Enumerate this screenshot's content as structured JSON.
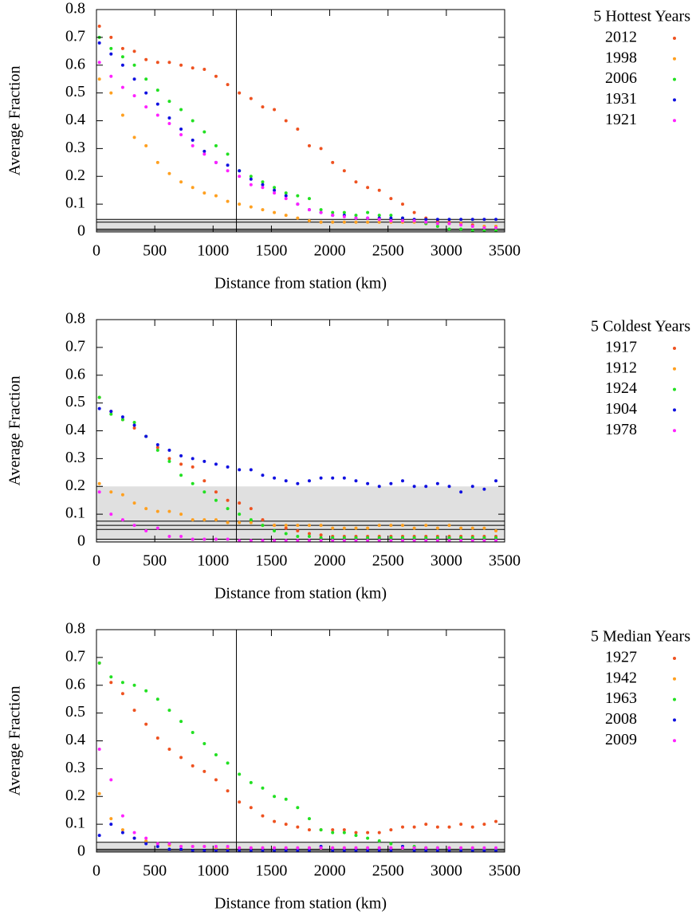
{
  "chart_data": [
    {
      "type": "scatter",
      "legend_title": "5 Hottest Years",
      "xlabel": "Distance from station (km)",
      "ylabel": "Average Fraction",
      "xlim": [
        0,
        3500
      ],
      "ylim": [
        0,
        0.8
      ],
      "xticks": [
        0,
        500,
        1000,
        1500,
        2000,
        2500,
        3000,
        3500
      ],
      "yticks": [
        0,
        0.1,
        0.2,
        0.3,
        0.4,
        0.5,
        0.6,
        0.7,
        0.8
      ],
      "vline": 1200,
      "band": [
        0.005,
        0.045
      ],
      "hlines": [
        0.045,
        0.035,
        0.01,
        0.005
      ],
      "x": [
        25,
        125,
        225,
        325,
        425,
        525,
        625,
        725,
        825,
        925,
        1025,
        1125,
        1225,
        1325,
        1425,
        1525,
        1625,
        1725,
        1825,
        1925,
        2025,
        2125,
        2225,
        2325,
        2425,
        2525,
        2625,
        2725,
        2825,
        2925,
        3025,
        3125,
        3225,
        3325,
        3425
      ],
      "series": [
        {
          "name": "2012",
          "color": "#ee5220",
          "values": [
            0.74,
            0.7,
            0.66,
            0.65,
            0.62,
            0.61,
            0.61,
            0.6,
            0.59,
            0.585,
            0.56,
            0.53,
            0.5,
            0.48,
            0.45,
            0.44,
            0.4,
            0.37,
            0.31,
            0.3,
            0.25,
            0.22,
            0.18,
            0.16,
            0.15,
            0.12,
            0.1,
            0.07,
            0.05,
            0.04,
            0.035,
            0.03,
            0.025,
            0.02,
            0.02
          ]
        },
        {
          "name": "1998",
          "color": "#ffa020",
          "values": [
            0.55,
            0.5,
            0.42,
            0.34,
            0.31,
            0.25,
            0.21,
            0.18,
            0.16,
            0.14,
            0.13,
            0.11,
            0.1,
            0.09,
            0.08,
            0.07,
            0.06,
            0.05,
            0.04,
            0.035,
            0.035,
            0.035,
            0.035,
            0.035,
            0.035,
            0.035,
            0.035,
            0.035,
            0.03,
            0.03,
            0.03,
            0.03,
            0.02,
            0.02,
            0.02
          ]
        },
        {
          "name": "2006",
          "color": "#22e022",
          "values": [
            0.7,
            0.66,
            0.63,
            0.6,
            0.55,
            0.51,
            0.47,
            0.44,
            0.4,
            0.36,
            0.31,
            0.28,
            0.22,
            0.2,
            0.18,
            0.16,
            0.14,
            0.13,
            0.12,
            0.08,
            0.07,
            0.07,
            0.06,
            0.07,
            0.06,
            0.06,
            0.05,
            0.04,
            0.03,
            0.02,
            0.01,
            0.01,
            0.005,
            0.005,
            0.005
          ]
        },
        {
          "name": "1931",
          "color": "#1010e0",
          "values": [
            0.68,
            0.64,
            0.6,
            0.55,
            0.5,
            0.46,
            0.41,
            0.37,
            0.33,
            0.29,
            0.25,
            0.24,
            0.22,
            0.19,
            0.17,
            0.15,
            0.13,
            0.1,
            0.08,
            0.07,
            0.06,
            0.06,
            0.05,
            0.05,
            0.05,
            0.05,
            0.05,
            0.045,
            0.045,
            0.045,
            0.045,
            0.045,
            0.045,
            0.045,
            0.045
          ]
        },
        {
          "name": "1921",
          "color": "#ff22ff",
          "values": [
            0.61,
            0.56,
            0.52,
            0.49,
            0.45,
            0.42,
            0.39,
            0.35,
            0.31,
            0.28,
            0.25,
            0.22,
            0.2,
            0.17,
            0.16,
            0.14,
            0.12,
            0.1,
            0.08,
            0.07,
            0.06,
            0.055,
            0.05,
            0.05,
            0.045,
            0.04,
            0.04,
            0.04,
            0.035,
            0.03,
            0.03,
            0.025,
            0.02,
            0.015,
            0.015
          ]
        }
      ]
    },
    {
      "type": "scatter",
      "legend_title": "5 Coldest Years",
      "xlabel": "Distance from station (km)",
      "ylabel": "Average Fraction",
      "xlim": [
        0,
        3500
      ],
      "ylim": [
        0,
        0.8
      ],
      "xticks": [
        0,
        500,
        1000,
        1500,
        2000,
        2500,
        3000,
        3500
      ],
      "yticks": [
        0,
        0.1,
        0.2,
        0.3,
        0.4,
        0.5,
        0.6,
        0.7,
        0.8
      ],
      "vline": 1200,
      "band": [
        0,
        0.2
      ],
      "hlines": [
        0.075,
        0.06,
        0.045,
        0.01
      ],
      "x": [
        25,
        125,
        225,
        325,
        425,
        525,
        625,
        725,
        825,
        925,
        1025,
        1125,
        1225,
        1325,
        1425,
        1525,
        1625,
        1725,
        1825,
        1925,
        2025,
        2125,
        2225,
        2325,
        2425,
        2525,
        2625,
        2725,
        2825,
        2925,
        3025,
        3125,
        3225,
        3325,
        3425
      ],
      "series": [
        {
          "name": "1917",
          "color": "#ee5220",
          "values": [
            0.52,
            0.47,
            0.44,
            0.41,
            0.38,
            0.34,
            0.3,
            0.28,
            0.27,
            0.22,
            0.18,
            0.15,
            0.14,
            0.12,
            0.08,
            0.06,
            0.05,
            0.04,
            0.03,
            0.025,
            0.02,
            0.02,
            0.02,
            0.02,
            0.02,
            0.02,
            0.02,
            0.02,
            0.02,
            0.02,
            0.02,
            0.02,
            0.02,
            0.02,
            0.02
          ]
        },
        {
          "name": "1912",
          "color": "#ffa020",
          "values": [
            0.21,
            0.18,
            0.17,
            0.14,
            0.12,
            0.11,
            0.11,
            0.1,
            0.08,
            0.08,
            0.08,
            0.07,
            0.07,
            0.07,
            0.06,
            0.06,
            0.06,
            0.06,
            0.06,
            0.06,
            0.05,
            0.05,
            0.05,
            0.05,
            0.06,
            0.06,
            0.06,
            0.05,
            0.06,
            0.05,
            0.06,
            0.05,
            0.05,
            0.05,
            0.04
          ]
        },
        {
          "name": "1924",
          "color": "#22e022",
          "values": [
            0.52,
            0.46,
            0.44,
            0.43,
            0.38,
            0.33,
            0.29,
            0.24,
            0.21,
            0.18,
            0.15,
            0.12,
            0.1,
            0.08,
            0.06,
            0.04,
            0.03,
            0.02,
            0.02,
            0.015,
            0.015,
            0.015,
            0.015,
            0.015,
            0.015,
            0.015,
            0.015,
            0.015,
            0.015,
            0.015,
            0.015,
            0.015,
            0.015,
            0.015,
            0.015
          ]
        },
        {
          "name": "1904",
          "color": "#1010e0",
          "values": [
            0.48,
            0.47,
            0.45,
            0.42,
            0.38,
            0.35,
            0.33,
            0.31,
            0.3,
            0.29,
            0.28,
            0.27,
            0.26,
            0.26,
            0.24,
            0.23,
            0.22,
            0.21,
            0.22,
            0.23,
            0.23,
            0.23,
            0.22,
            0.21,
            0.2,
            0.21,
            0.22,
            0.2,
            0.2,
            0.21,
            0.2,
            0.18,
            0.2,
            0.19,
            0.22
          ]
        },
        {
          "name": "1978",
          "color": "#ff22ff",
          "values": [
            0.18,
            0.1,
            0.08,
            0.06,
            0.04,
            0.05,
            0.02,
            0.02,
            0.01,
            0.01,
            0.01,
            0.01,
            0.005,
            0.005,
            0.005,
            0.005,
            0.005,
            0.005,
            0.005,
            0.005,
            0.005,
            0.005,
            0.005,
            0.005,
            0.005,
            0.005,
            0.005,
            0.005,
            0.005,
            0.005,
            0.005,
            0.005,
            0.005,
            0.005,
            0.005
          ]
        }
      ]
    },
    {
      "type": "scatter",
      "legend_title": "5 Median Years",
      "xlabel": "Distance from station (km)",
      "ylabel": "Average Fraction",
      "xlim": [
        0,
        3500
      ],
      "ylim": [
        0,
        0.8
      ],
      "xticks": [
        0,
        500,
        1000,
        1500,
        2000,
        2500,
        3000,
        3500
      ],
      "yticks": [
        0,
        0.1,
        0.2,
        0.3,
        0.4,
        0.5,
        0.6,
        0.7,
        0.8
      ],
      "vline": 1200,
      "band": [
        0,
        0.035
      ],
      "hlines": [
        0.035,
        0.01,
        0.005
      ],
      "x": [
        25,
        125,
        225,
        325,
        425,
        525,
        625,
        725,
        825,
        925,
        1025,
        1125,
        1225,
        1325,
        1425,
        1525,
        1625,
        1725,
        1825,
        1925,
        2025,
        2125,
        2225,
        2325,
        2425,
        2525,
        2625,
        2725,
        2825,
        2925,
        3025,
        3125,
        3225,
        3325,
        3425
      ],
      "series": [
        {
          "name": "1927",
          "color": "#ee5220",
          "values": [
            0.68,
            0.61,
            0.57,
            0.51,
            0.46,
            0.41,
            0.37,
            0.34,
            0.31,
            0.29,
            0.26,
            0.22,
            0.18,
            0.16,
            0.13,
            0.11,
            0.1,
            0.09,
            0.08,
            0.08,
            0.08,
            0.08,
            0.07,
            0.07,
            0.07,
            0.08,
            0.09,
            0.09,
            0.1,
            0.09,
            0.09,
            0.1,
            0.09,
            0.1,
            0.11
          ]
        },
        {
          "name": "1942",
          "color": "#ffa020",
          "values": [
            0.21,
            0.12,
            0.08,
            0.05,
            0.04,
            0.03,
            0.025,
            0.02,
            0.02,
            0.02,
            0.015,
            0.015,
            0.015,
            0.015,
            0.015,
            0.015,
            0.015,
            0.015,
            0.015,
            0.015,
            0.015,
            0.015,
            0.015,
            0.015,
            0.015,
            0.015,
            0.015,
            0.015,
            0.015,
            0.015,
            0.015,
            0.015,
            0.015,
            0.01,
            0.01
          ]
        },
        {
          "name": "1963",
          "color": "#22e022",
          "values": [
            0.68,
            0.63,
            0.61,
            0.6,
            0.58,
            0.55,
            0.51,
            0.47,
            0.43,
            0.39,
            0.35,
            0.32,
            0.28,
            0.25,
            0.23,
            0.2,
            0.19,
            0.16,
            0.12,
            0.08,
            0.07,
            0.07,
            0.06,
            0.05,
            0.04,
            0.03,
            0.02,
            0.02,
            0.015,
            0.015,
            0.01,
            0.01,
            0.01,
            0.01,
            0.01
          ]
        },
        {
          "name": "2008",
          "color": "#1010e0",
          "values": [
            0.06,
            0.1,
            0.07,
            0.05,
            0.03,
            0.02,
            0.01,
            0.01,
            0.005,
            0.005,
            0.005,
            0.005,
            0.005,
            0.005,
            0.005,
            0.005,
            0.005,
            0.005,
            0.005,
            0.02,
            0.005,
            0.005,
            0.005,
            0.005,
            0.005,
            0.005,
            0.02,
            0.005,
            0.005,
            0.005,
            0.005,
            0.005,
            0.005,
            0.005,
            0.005
          ]
        },
        {
          "name": "2009",
          "color": "#ff22ff",
          "values": [
            0.37,
            0.26,
            0.13,
            0.07,
            0.05,
            0.03,
            0.03,
            0.02,
            0.02,
            0.02,
            0.02,
            0.02,
            0.015,
            0.015,
            0.015,
            0.015,
            0.015,
            0.015,
            0.015,
            0.015,
            0.015,
            0.015,
            0.015,
            0.015,
            0.015,
            0.015,
            0.015,
            0.015,
            0.015,
            0.015,
            0.015,
            0.015,
            0.015,
            0.015,
            0.015
          ]
        }
      ]
    }
  ]
}
